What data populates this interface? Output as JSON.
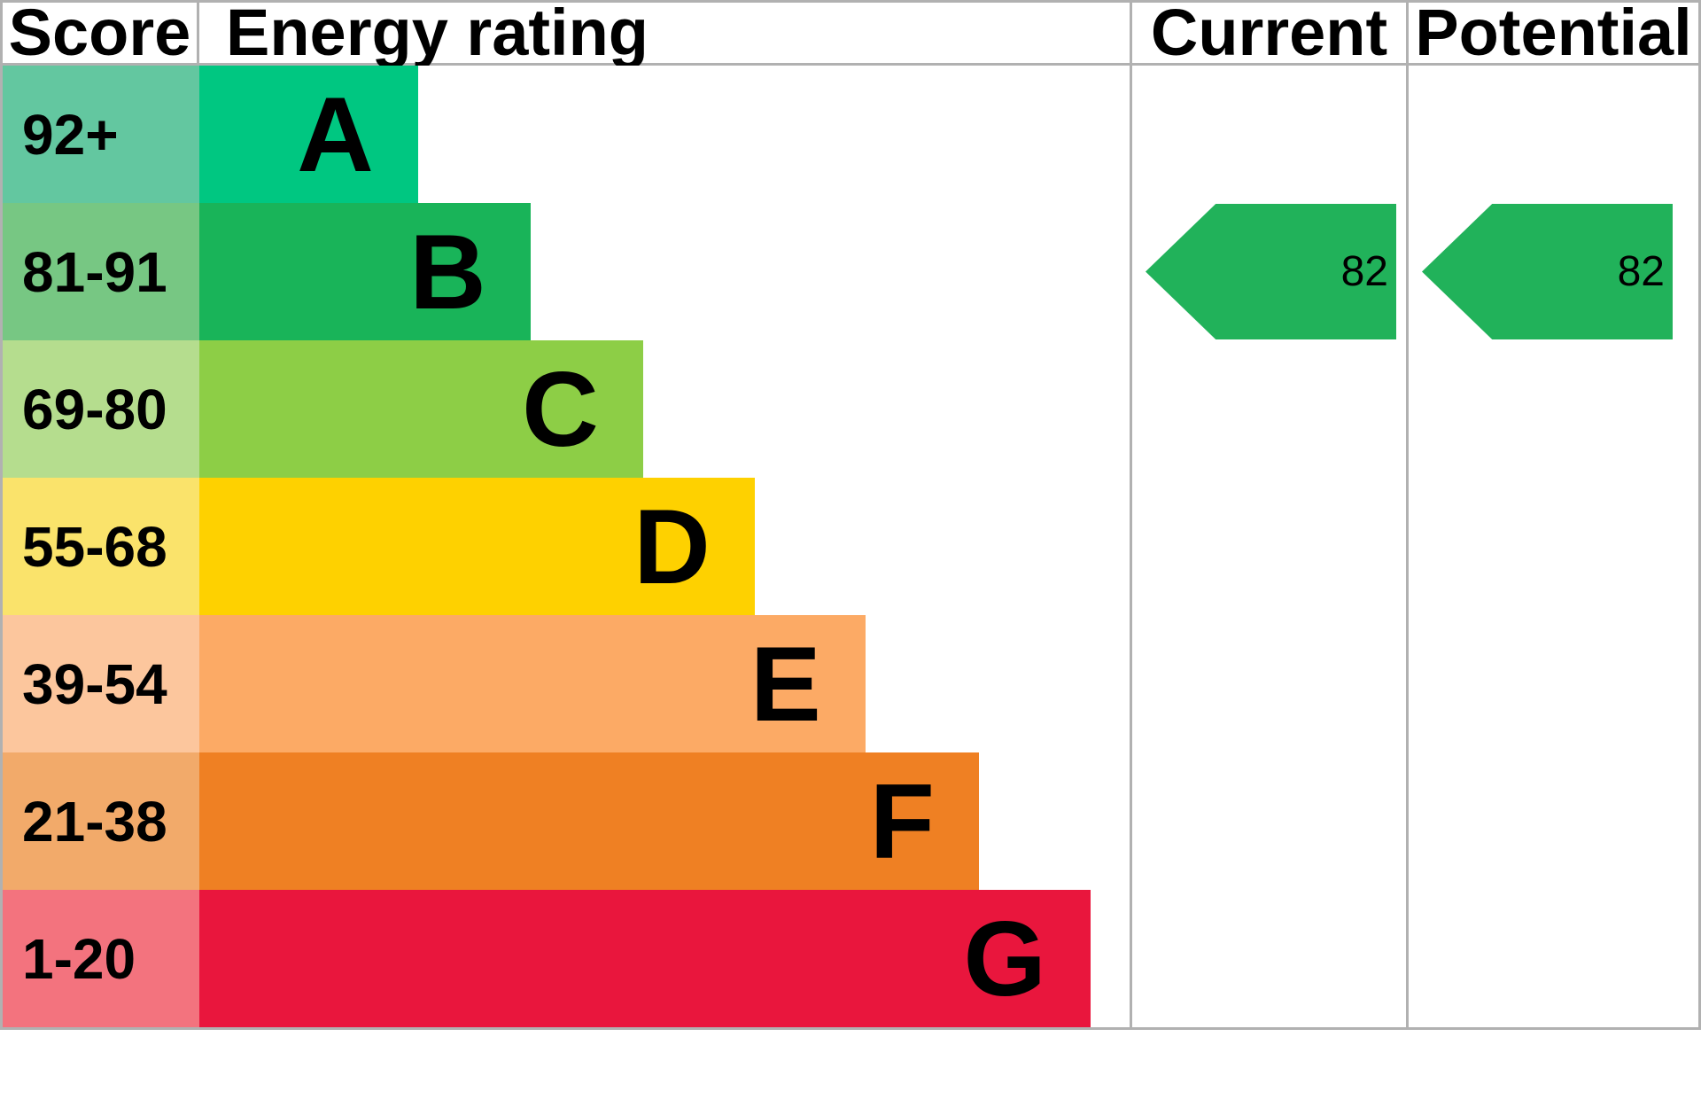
{
  "chart_data": {
    "type": "bar",
    "description": "EPC energy efficiency rating chart",
    "columns": {
      "score": "Score",
      "energy_rating": "Energy rating",
      "current": "Current",
      "potential": "Potential"
    },
    "bands": [
      {
        "score": "92+",
        "letter": "A",
        "bar_width": "23.5%",
        "bar_color": "#00c781",
        "score_color": "#63c7a0"
      },
      {
        "score": "81-91",
        "letter": "B",
        "bar_width": "35.6%",
        "bar_color": "#19b459",
        "score_color": "#77c783"
      },
      {
        "score": "69-80",
        "letter": "C",
        "bar_width": "47.7%",
        "bar_color": "#8dce46",
        "score_color": "#b5dd8e"
      },
      {
        "score": "55-68",
        "letter": "D",
        "bar_width": "59.7%",
        "bar_color": "#fed100",
        "score_color": "#fae36b"
      },
      {
        "score": "39-54",
        "letter": "E",
        "bar_width": "71.6%",
        "bar_color": "#fcaa65",
        "score_color": "#fcc69d"
      },
      {
        "score": "21-38",
        "letter": "F",
        "bar_width": "83.8%",
        "bar_color": "#ef8023",
        "score_color": "#f2aa6a"
      },
      {
        "score": "1-20",
        "letter": "G",
        "bar_width": "95.8%",
        "bar_color": "#e9163d",
        "score_color": "#f3737e"
      }
    ],
    "current": {
      "value": "82",
      "band": "B"
    },
    "potential": {
      "value": "82",
      "band": "B"
    },
    "arrow_color": "#21b25a",
    "border_color": "#b1b1b1"
  }
}
